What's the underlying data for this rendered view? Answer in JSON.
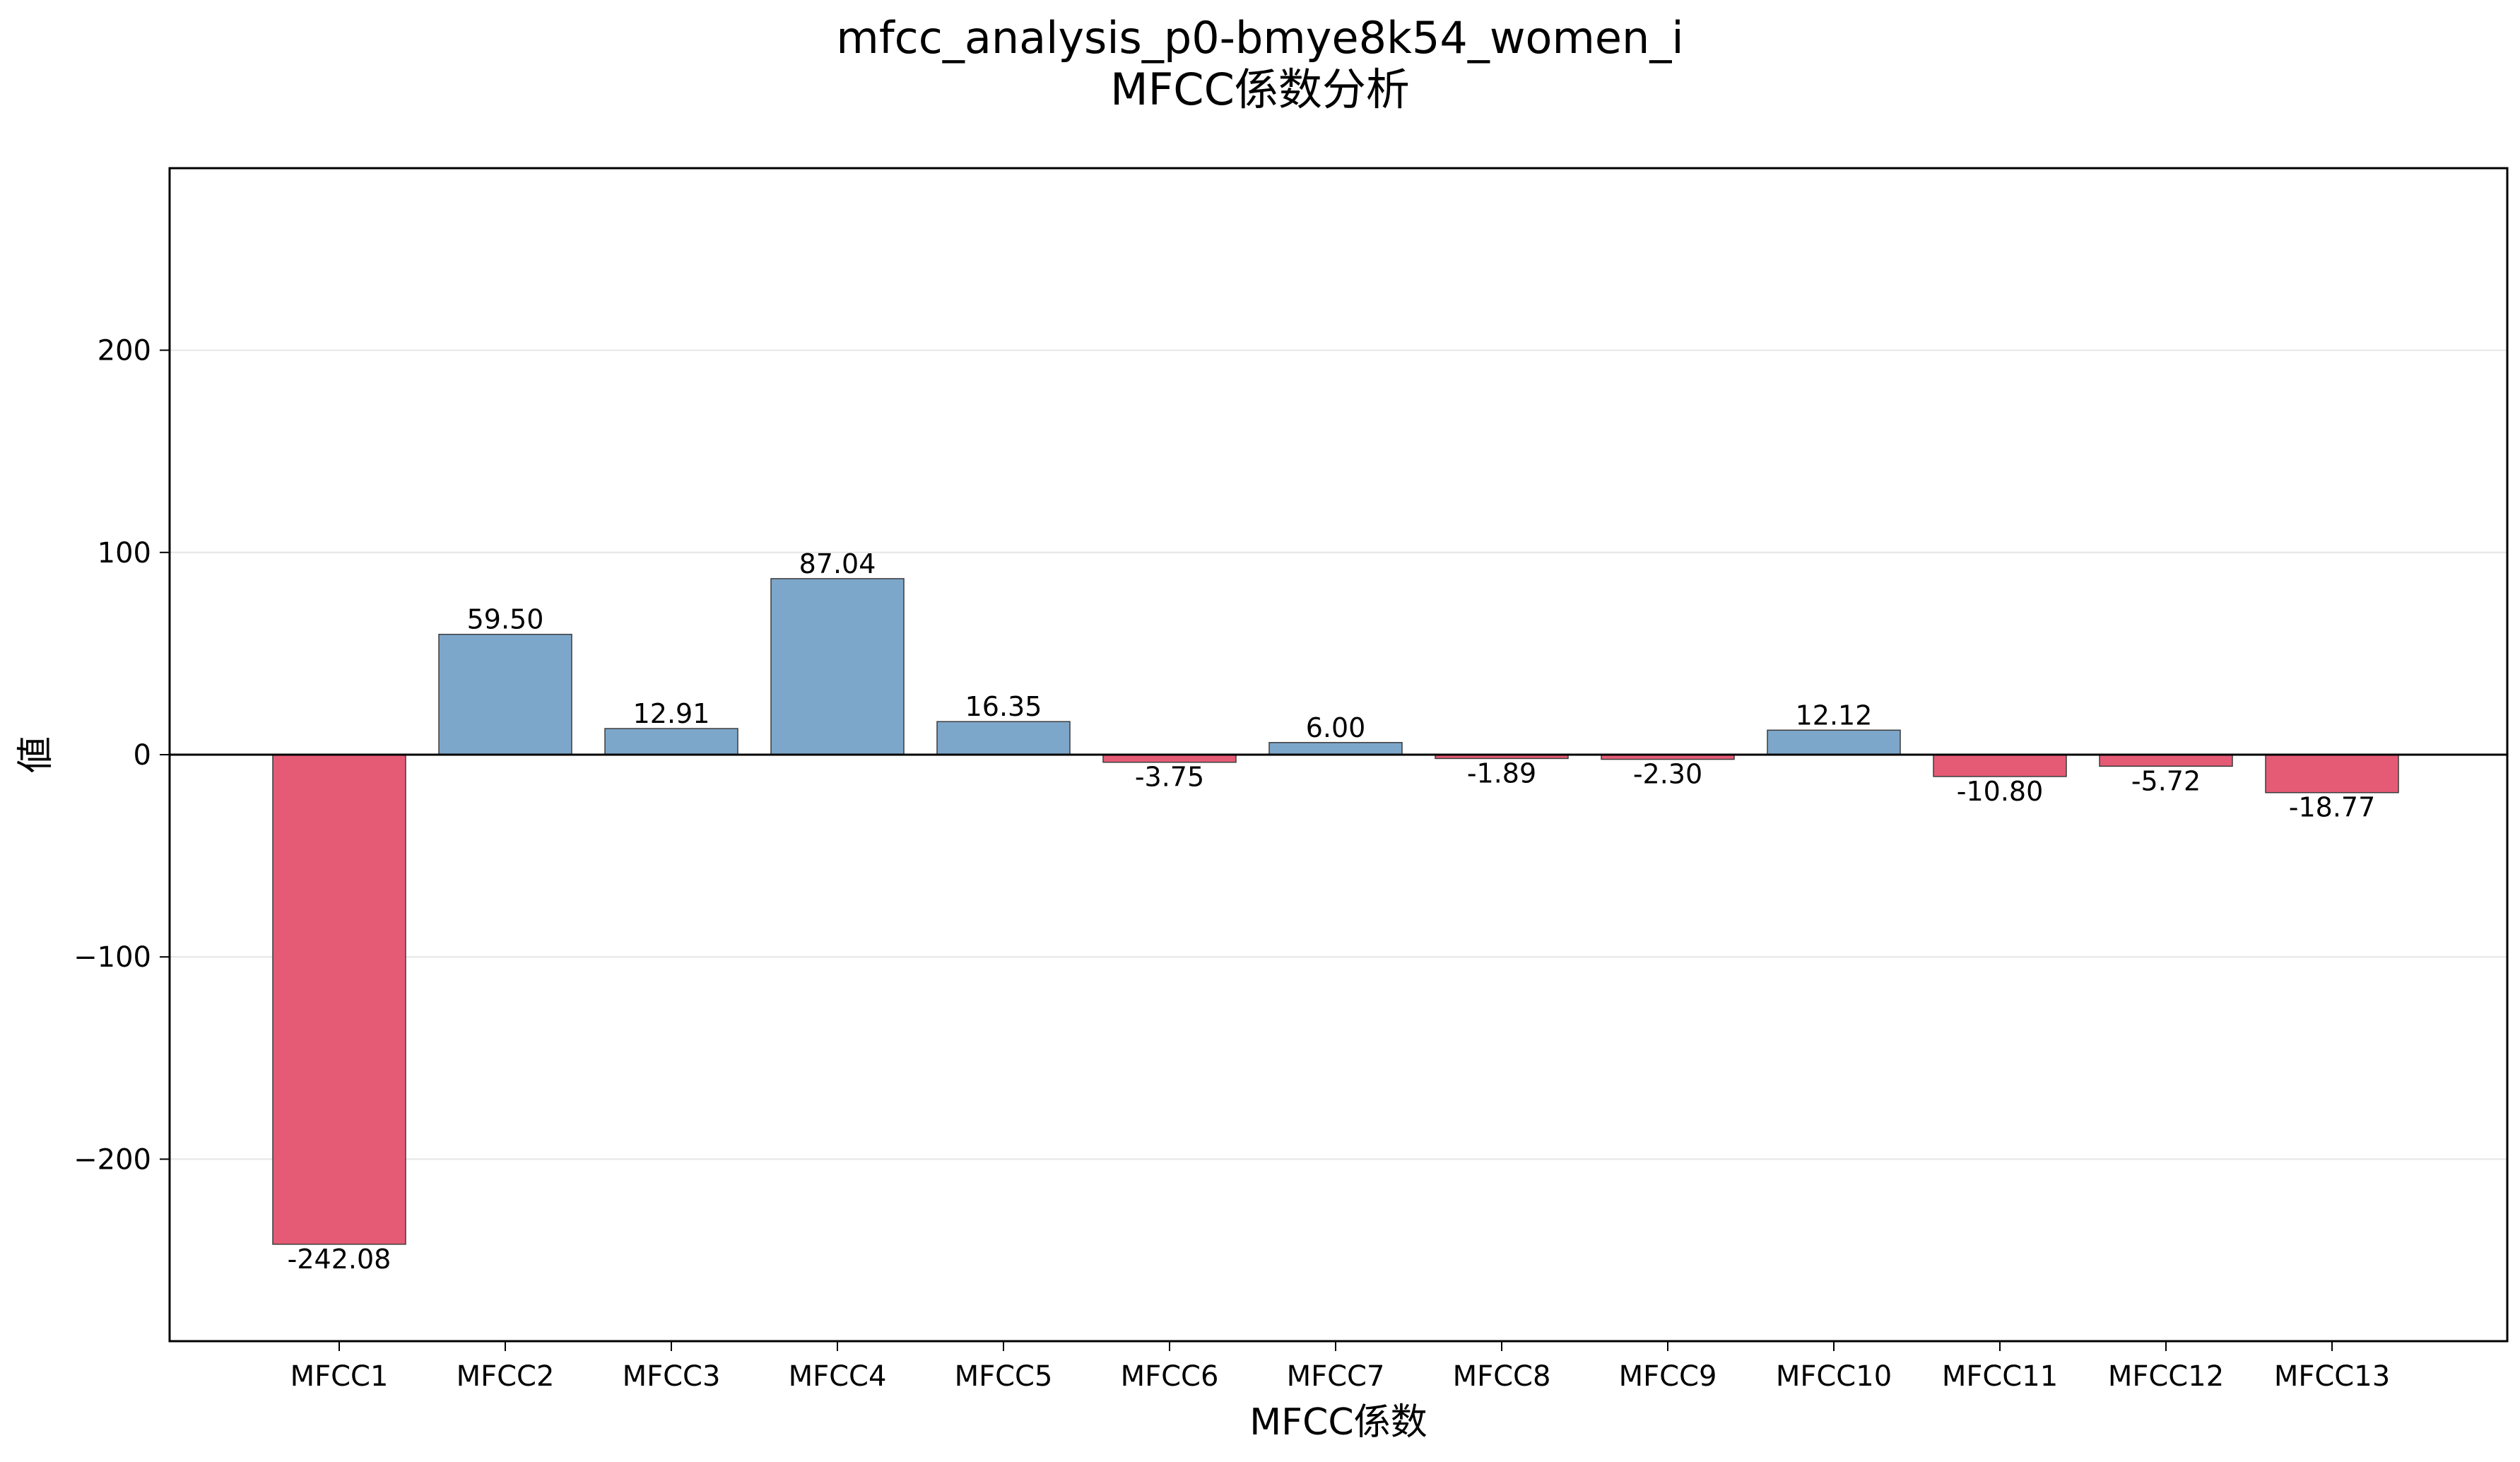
{
  "chart_data": {
    "type": "bar",
    "title": "mfcc_analysis_p0-bmye8k54_women_i",
    "subtitle": "MFCC係数分析",
    "xlabel": "MFCC係数",
    "ylabel": "値",
    "categories": [
      "MFCC1",
      "MFCC2",
      "MFCC3",
      "MFCC4",
      "MFCC5",
      "MFCC6",
      "MFCC7",
      "MFCC8",
      "MFCC9",
      "MFCC10",
      "MFCC11",
      "MFCC12",
      "MFCC13"
    ],
    "values": [
      -242.08,
      59.5,
      12.91,
      87.04,
      16.35,
      -3.75,
      6.0,
      -1.89,
      -2.3,
      12.12,
      -10.8,
      -5.72,
      -18.77
    ],
    "data_labels": [
      "-242.08",
      "59.50",
      "12.91",
      "87.04",
      "16.35",
      "-3.75",
      "6.00",
      "-1.89",
      "-2.30",
      "12.12",
      "-10.80",
      "-5.72",
      "-18.77"
    ],
    "ylim": [
      -290,
      290
    ],
    "yticks": [
      200,
      100,
      0,
      -100,
      -200
    ],
    "ytick_labels": [
      "200",
      "100",
      "0",
      "−100",
      "−200"
    ],
    "grid": true,
    "colors": {
      "positive": "#7da7ca",
      "negative": "#e55b75",
      "edge": "#3c3c3c",
      "grid": "#e6e6e6"
    }
  }
}
